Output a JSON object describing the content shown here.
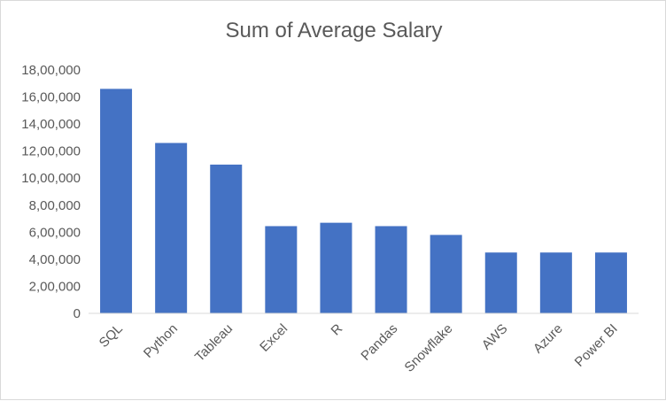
{
  "chart_data": {
    "type": "bar",
    "title": "Sum of Average Salary",
    "categories": [
      "SQL",
      "Python",
      "Tableau",
      "Excel",
      "R",
      "Pandas",
      "Snowflake",
      "AWS",
      "Azure",
      "Power BI"
    ],
    "values": [
      1660000,
      1260000,
      1100000,
      645000,
      670000,
      645000,
      580000,
      450000,
      450000,
      450000
    ],
    "ylim": [
      0,
      1800000
    ],
    "yticks": [
      0,
      200000,
      400000,
      600000,
      800000,
      1000000,
      1200000,
      1400000,
      1600000,
      1800000
    ],
    "ytick_labels": [
      "0",
      "2,00,000",
      "4,00,000",
      "6,00,000",
      "8,00,000",
      "10,00,000",
      "12,00,000",
      "14,00,000",
      "16,00,000",
      "18,00,000"
    ],
    "grid": false,
    "bar_color": "#4472C4",
    "text_color": "#595959",
    "axis_color": "#d9d9d9"
  }
}
